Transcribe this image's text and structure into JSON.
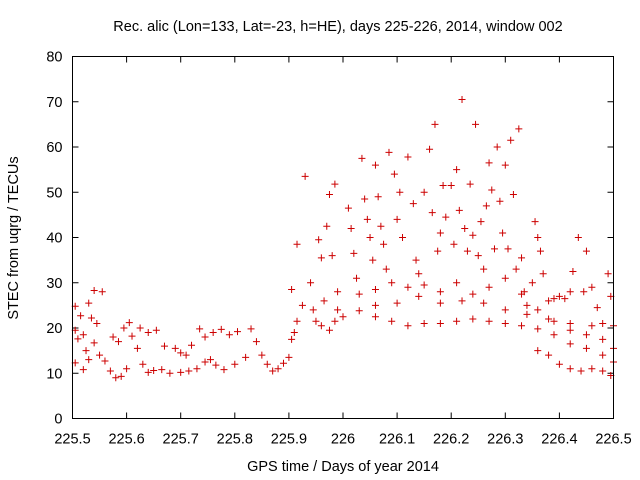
{
  "chart_data": {
    "type": "scatter",
    "title": "Rec. alic (Lon=133, Lat=-23, h=HE), days 225-226, 2014, window 002",
    "xlabel": "GPS time / Days of year 2014",
    "ylabel": "STEC from uqrg / TECUs",
    "xlim": [
      225.5,
      226.5
    ],
    "ylim": [
      0,
      80
    ],
    "x_ticks": [
      225.5,
      225.6,
      225.7,
      225.8,
      225.9,
      226.0,
      226.1,
      226.2,
      226.3,
      226.4,
      226.5
    ],
    "x_tick_labels": [
      "225.5",
      "225.6",
      "225.7",
      "225.8",
      "225.9",
      "226",
      "226.1",
      "226.2",
      "226.3",
      "226.4",
      "226.5"
    ],
    "y_ticks": [
      0,
      10,
      20,
      30,
      40,
      50,
      60,
      70,
      80
    ],
    "y_tick_labels": [
      "0",
      "10",
      "20",
      "30",
      "40",
      "50",
      "60",
      "70",
      "80"
    ],
    "marker": "+",
    "marker_color": "#cc0000",
    "series": [
      {
        "name": "STEC",
        "points": [
          [
            225.505,
            24.8
          ],
          [
            225.505,
            19.5
          ],
          [
            225.51,
            17.6
          ],
          [
            225.515,
            22.7
          ],
          [
            225.52,
            18.5
          ],
          [
            225.525,
            15.0
          ],
          [
            225.505,
            12.3
          ],
          [
            225.52,
            10.8
          ],
          [
            225.53,
            25.5
          ],
          [
            225.535,
            22.2
          ],
          [
            225.54,
            28.3
          ],
          [
            225.545,
            21.0
          ],
          [
            225.555,
            28.0
          ],
          [
            225.53,
            13.0
          ],
          [
            225.54,
            16.7
          ],
          [
            225.55,
            14.0
          ],
          [
            225.56,
            12.7
          ],
          [
            225.57,
            10.5
          ],
          [
            225.58,
            9.0
          ],
          [
            225.59,
            9.3
          ],
          [
            225.6,
            11.0
          ],
          [
            225.575,
            18.0
          ],
          [
            225.585,
            17.0
          ],
          [
            225.595,
            20.0
          ],
          [
            225.605,
            21.2
          ],
          [
            225.61,
            18.2
          ],
          [
            225.62,
            15.5
          ],
          [
            225.63,
            12.0
          ],
          [
            225.64,
            10.2
          ],
          [
            225.65,
            10.6
          ],
          [
            225.665,
            10.8
          ],
          [
            225.68,
            10.0
          ],
          [
            225.625,
            20.0
          ],
          [
            225.64,
            19.0
          ],
          [
            225.655,
            19.5
          ],
          [
            225.67,
            16.0
          ],
          [
            225.69,
            15.5
          ],
          [
            225.7,
            14.5
          ],
          [
            225.71,
            14.0
          ],
          [
            225.72,
            16.2
          ],
          [
            225.735,
            19.8
          ],
          [
            225.745,
            18.0
          ],
          [
            225.76,
            19.0
          ],
          [
            225.775,
            19.7
          ],
          [
            225.79,
            18.5
          ],
          [
            225.805,
            19.2
          ],
          [
            225.7,
            10.2
          ],
          [
            225.715,
            10.5
          ],
          [
            225.73,
            11.0
          ],
          [
            225.745,
            12.5
          ],
          [
            225.755,
            13.0
          ],
          [
            225.765,
            11.8
          ],
          [
            225.78,
            10.8
          ],
          [
            225.8,
            12.0
          ],
          [
            225.82,
            13.5
          ],
          [
            225.83,
            19.8
          ],
          [
            225.84,
            17.0
          ],
          [
            225.85,
            14.0
          ],
          [
            225.86,
            12.0
          ],
          [
            225.87,
            10.5
          ],
          [
            225.88,
            11.0
          ],
          [
            225.89,
            12.2
          ],
          [
            225.9,
            13.5
          ],
          [
            225.905,
            17.5
          ],
          [
            225.91,
            19.0
          ],
          [
            225.915,
            21.5
          ],
          [
            225.905,
            28.5
          ],
          [
            225.915,
            38.5
          ],
          [
            225.925,
            25.0
          ],
          [
            225.93,
            53.5
          ],
          [
            225.94,
            30.0
          ],
          [
            225.945,
            24.0
          ],
          [
            225.95,
            21.5
          ],
          [
            225.955,
            39.5
          ],
          [
            225.96,
            35.5
          ],
          [
            225.965,
            26.0
          ],
          [
            225.97,
            42.5
          ],
          [
            225.975,
            49.5
          ],
          [
            225.98,
            36.0
          ],
          [
            225.985,
            51.8
          ],
          [
            225.99,
            28.0
          ],
          [
            225.96,
            20.5
          ],
          [
            225.975,
            19.5
          ],
          [
            225.985,
            21.5
          ],
          [
            225.99,
            24.0
          ],
          [
            226.01,
            46.5
          ],
          [
            226.015,
            42.0
          ],
          [
            226.02,
            36.5
          ],
          [
            226.025,
            31.0
          ],
          [
            226.03,
            27.5
          ],
          [
            226.035,
            57.5
          ],
          [
            226.04,
            48.5
          ],
          [
            226.045,
            44.0
          ],
          [
            226.05,
            40.0
          ],
          [
            226.055,
            35.0
          ],
          [
            226.06,
            56.0
          ],
          [
            226.065,
            49.0
          ],
          [
            226.07,
            42.5
          ],
          [
            226.075,
            38.5
          ],
          [
            226.08,
            33.0
          ],
          [
            226.085,
            58.8
          ],
          [
            226.095,
            54.0
          ],
          [
            226.1,
            44.0
          ],
          [
            226.105,
            50.0
          ],
          [
            226.11,
            40.0
          ],
          [
            226.12,
            57.8
          ],
          [
            226.13,
            47.5
          ],
          [
            226.135,
            35.0
          ],
          [
            226.14,
            32.0
          ],
          [
            226.15,
            50.0
          ],
          [
            226.16,
            59.5
          ],
          [
            226.165,
            45.5
          ],
          [
            226.17,
            65.0
          ],
          [
            226.175,
            37.0
          ],
          [
            226.18,
            41.0
          ],
          [
            226.185,
            51.5
          ],
          [
            226.19,
            44.5
          ],
          [
            226.2,
            51.5
          ],
          [
            226.205,
            38.5
          ],
          [
            226.21,
            55.0
          ],
          [
            226.215,
            46.0
          ],
          [
            226.22,
            70.5
          ],
          [
            226.225,
            42.0
          ],
          [
            226.23,
            37.0
          ],
          [
            226.235,
            51.8
          ],
          [
            226.24,
            40.5
          ],
          [
            226.245,
            65.0
          ],
          [
            226.25,
            36.0
          ],
          [
            226.255,
            43.5
          ],
          [
            226.26,
            33.0
          ],
          [
            226.265,
            47.0
          ],
          [
            226.27,
            56.5
          ],
          [
            226.275,
            50.5
          ],
          [
            226.28,
            37.5
          ],
          [
            226.285,
            60.0
          ],
          [
            226.29,
            48.0
          ],
          [
            226.295,
            41.0
          ],
          [
            226.3,
            56.0
          ],
          [
            226.305,
            37.5
          ],
          [
            226.31,
            61.5
          ],
          [
            226.315,
            49.5
          ],
          [
            226.32,
            33.0
          ],
          [
            226.325,
            64.0
          ],
          [
            226.33,
            35.5
          ],
          [
            226.335,
            28.0
          ],
          [
            226.34,
            25.0
          ],
          [
            226.35,
            30.0
          ],
          [
            226.355,
            43.5
          ],
          [
            226.36,
            40.0
          ],
          [
            226.365,
            37.0
          ],
          [
            226.37,
            32.0
          ],
          [
            226.38,
            26.0
          ],
          [
            226.39,
            26.5
          ],
          [
            226.4,
            27.0
          ],
          [
            226.41,
            26.5
          ],
          [
            226.42,
            28.0
          ],
          [
            226.425,
            32.5
          ],
          [
            226.435,
            40.0
          ],
          [
            226.445,
            28.0
          ],
          [
            226.45,
            37.0
          ],
          [
            226.46,
            29.0
          ],
          [
            226.47,
            24.5
          ],
          [
            226.48,
            21.0
          ],
          [
            226.49,
            32.0
          ],
          [
            226.495,
            27.0
          ],
          [
            226.0,
            22.5
          ],
          [
            226.03,
            23.8
          ],
          [
            226.06,
            22.5
          ],
          [
            226.09,
            21.5
          ],
          [
            226.12,
            20.5
          ],
          [
            226.15,
            21.0
          ],
          [
            226.18,
            21.0
          ],
          [
            226.21,
            21.5
          ],
          [
            226.24,
            22.0
          ],
          [
            226.27,
            21.5
          ],
          [
            226.3,
            21.0
          ],
          [
            226.33,
            20.5
          ],
          [
            226.36,
            19.8
          ],
          [
            226.39,
            18.5
          ],
          [
            226.42,
            16.5
          ],
          [
            226.45,
            15.5
          ],
          [
            226.48,
            14.0
          ],
          [
            226.5,
            12.5
          ],
          [
            226.36,
            15.0
          ],
          [
            226.38,
            14.0
          ],
          [
            226.4,
            12.0
          ],
          [
            226.42,
            11.0
          ],
          [
            226.44,
            10.5
          ],
          [
            226.46,
            11.0
          ],
          [
            226.48,
            10.5
          ],
          [
            226.495,
            9.5
          ],
          [
            226.06,
            28.5
          ],
          [
            226.09,
            30.0
          ],
          [
            226.12,
            29.0
          ],
          [
            226.15,
            29.5
          ],
          [
            226.18,
            28.0
          ],
          [
            226.21,
            30.0
          ],
          [
            226.24,
            27.5
          ],
          [
            226.27,
            29.0
          ],
          [
            226.3,
            31.0
          ],
          [
            226.33,
            27.5
          ],
          [
            226.36,
            24.0
          ],
          [
            226.39,
            21.5
          ],
          [
            226.42,
            19.5
          ],
          [
            226.45,
            18.5
          ],
          [
            226.48,
            17.5
          ],
          [
            226.5,
            15.5
          ],
          [
            226.06,
            25.0
          ],
          [
            226.1,
            25.5
          ],
          [
            226.14,
            27.0
          ],
          [
            226.18,
            25.5
          ],
          [
            226.22,
            26.0
          ],
          [
            226.26,
            25.5
          ],
          [
            226.3,
            24.0
          ],
          [
            226.34,
            23.0
          ],
          [
            226.38,
            22.0
          ],
          [
            226.42,
            21.0
          ],
          [
            226.46,
            20.5
          ],
          [
            226.5,
            20.5
          ]
        ]
      }
    ]
  }
}
